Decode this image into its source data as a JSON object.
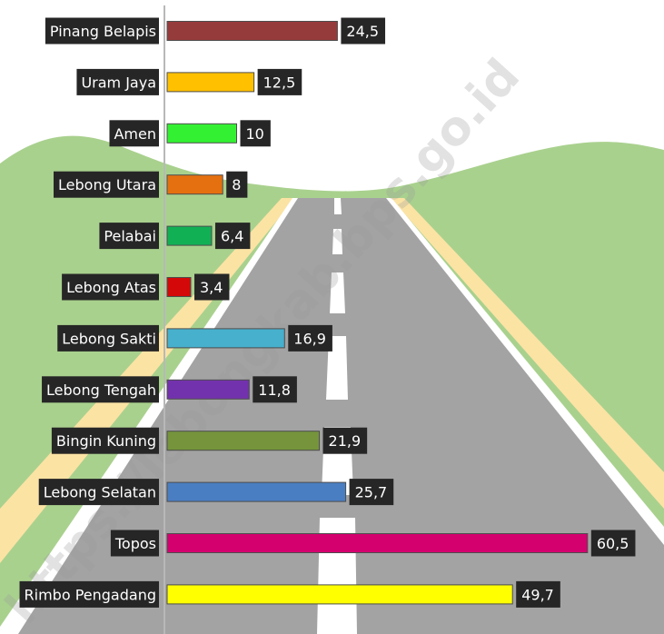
{
  "chart_data": {
    "type": "bar",
    "orientation": "horizontal",
    "categories": [
      "Pinang Belapis",
      "Uram Jaya",
      "Amen",
      "Lebong Utara",
      "Pelabai",
      "Lebong Atas",
      "Lebong Sakti",
      "Lebong Tengah",
      "Bingin Kuning",
      "Lebong Selatan",
      "Topos",
      "Rimbo Pengadang"
    ],
    "values": [
      24.5,
      12.5,
      10,
      8,
      6.4,
      3.4,
      16.9,
      11.8,
      21.9,
      25.7,
      60.5,
      49.7
    ],
    "value_labels": [
      "24,5",
      "12,5",
      "10",
      "8",
      "6,4",
      "3,4",
      "16,9",
      "11,8",
      "21,9",
      "25,7",
      "60,5",
      "49,7"
    ],
    "bar_colors": [
      "#963b3b",
      "#ffc000",
      "#33f033",
      "#e5700f",
      "#12b055",
      "#d40808",
      "#46b0cd",
      "#7332ad",
      "#75943c",
      "#4a7ec2",
      "#d4006e",
      "#ffff00"
    ],
    "title": "",
    "xlabel": "",
    "ylabel": "",
    "xlim": [
      0,
      65
    ],
    "grid": false,
    "legend": "none"
  },
  "watermark": "https://lebongkab.bps.go.id",
  "colors": {
    "sky": "#ffffff",
    "hills": "#a9d18e",
    "road": "#a3a3a3",
    "road_edge": "#fbe3a4",
    "lane_marking": "#ffffff",
    "label_box": "#262626",
    "axis_line": "#b8b8b8"
  }
}
